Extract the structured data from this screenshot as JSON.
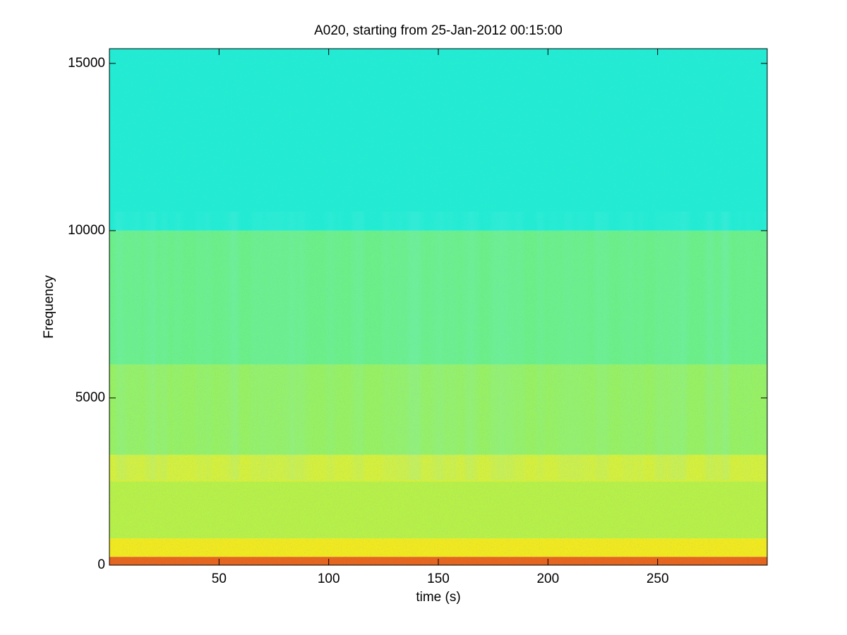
{
  "chart_data": {
    "type": "spectrogram",
    "title": "A020, starting from 25-Jan-2012 00:15:00",
    "x_label": "time (s)",
    "y_label": "Frequency",
    "xlim": [
      0,
      300
    ],
    "ylim": [
      0,
      15440
    ],
    "xticks": [
      50,
      100,
      150,
      200,
      250
    ],
    "yticks": [
      0,
      5000,
      10000,
      15000
    ],
    "bands": [
      {
        "from": 0,
        "to": 250,
        "color": "#e8631a"
      },
      {
        "from": 250,
        "to": 800,
        "color": "#f2e81c"
      },
      {
        "from": 800,
        "to": 2500,
        "color": "#b8f046"
      },
      {
        "from": 2500,
        "to": 3300,
        "color": "#d6ef3a"
      },
      {
        "from": 3300,
        "to": 6000,
        "color": "#98f060"
      },
      {
        "from": 6000,
        "to": 10000,
        "color": "#6cef86"
      },
      {
        "from": 10000,
        "to": 15440,
        "color": "#22ecd2"
      }
    ]
  }
}
